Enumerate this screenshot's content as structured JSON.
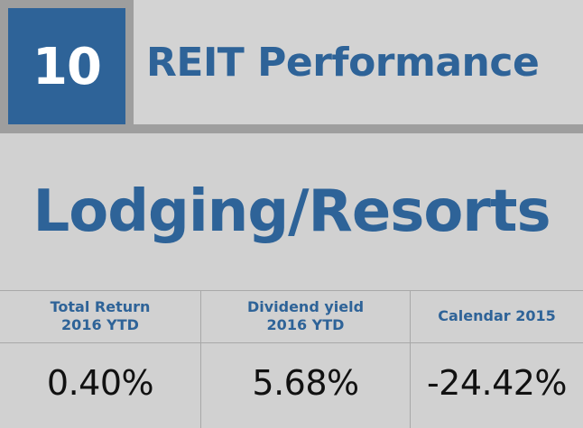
{
  "header": {
    "number": "10",
    "title": "REIT Performance"
  },
  "category": "Lodging/Resorts",
  "columns": [
    {
      "label_line1": "Total Return",
      "label_line2": "2016 YTD",
      "value": "0.40%"
    },
    {
      "label_line1": "Dividend yield",
      "label_line2": "2016 YTD",
      "value": "5.68%"
    },
    {
      "label_line1": "Calendar 2015",
      "label_line2": "",
      "value": "-24.42%"
    }
  ],
  "colors": {
    "accent": "#2e6398",
    "background": "#d1d1d1",
    "rule": "#9e9e9e",
    "value_text": "#111111"
  }
}
